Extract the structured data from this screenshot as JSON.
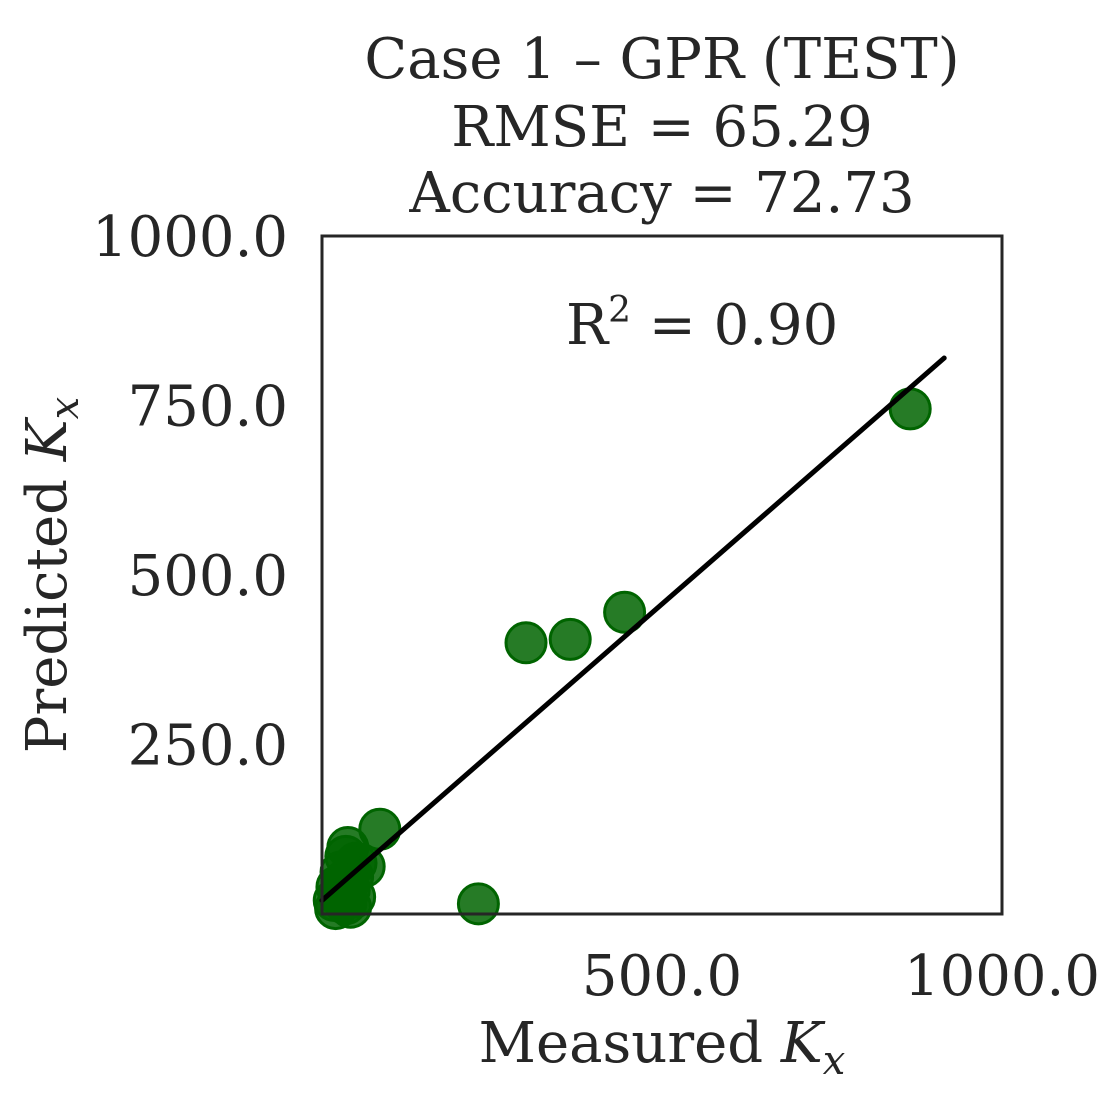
{
  "chart_data": {
    "type": "scatter",
    "title": [
      "Case 1 – GPR (TEST)",
      "RMSE = 65.29",
      "Accuracy = 72.73"
    ],
    "xlabel": "Measured",
    "ylabel": "Predicted",
    "axis_symbol": {
      "base": "K",
      "sub": "x"
    },
    "annotation": {
      "base": "R",
      "sup": "2",
      "rest": " = 0.90"
    },
    "xlim": [
      0,
      1000
    ],
    "ylim": [
      0,
      1000
    ],
    "x_ticks": [
      500,
      1000
    ],
    "x_tick_labels": [
      "500.0",
      "1000.0"
    ],
    "y_ticks": [
      250,
      500,
      750,
      1000
    ],
    "y_tick_labels": [
      "250.0",
      "500.0",
      "750.0",
      "1000.0"
    ],
    "grid": false,
    "marker_color": "#006400",
    "line_color": "#000000",
    "fit_line": {
      "x": [
        0,
        915
      ],
      "y": [
        20,
        820
      ]
    },
    "points": [
      {
        "x": 865,
        "y": 745
      },
      {
        "x": 445,
        "y": 445
      },
      {
        "x": 365,
        "y": 405
      },
      {
        "x": 300,
        "y": 400
      },
      {
        "x": 230,
        "y": 15
      },
      {
        "x": 85,
        "y": 125
      },
      {
        "x": 38,
        "y": 98
      },
      {
        "x": 35,
        "y": 85
      },
      {
        "x": 50,
        "y": 75
      },
      {
        "x": 62,
        "y": 70
      },
      {
        "x": 28,
        "y": 62
      },
      {
        "x": 45,
        "y": 55
      },
      {
        "x": 32,
        "y": 48
      },
      {
        "x": 22,
        "y": 40
      },
      {
        "x": 40,
        "y": 35
      },
      {
        "x": 25,
        "y": 28
      },
      {
        "x": 48,
        "y": 25
      },
      {
        "x": 18,
        "y": 20
      },
      {
        "x": 35,
        "y": 15
      },
      {
        "x": 20,
        "y": 8
      },
      {
        "x": 42,
        "y": 10
      }
    ]
  }
}
